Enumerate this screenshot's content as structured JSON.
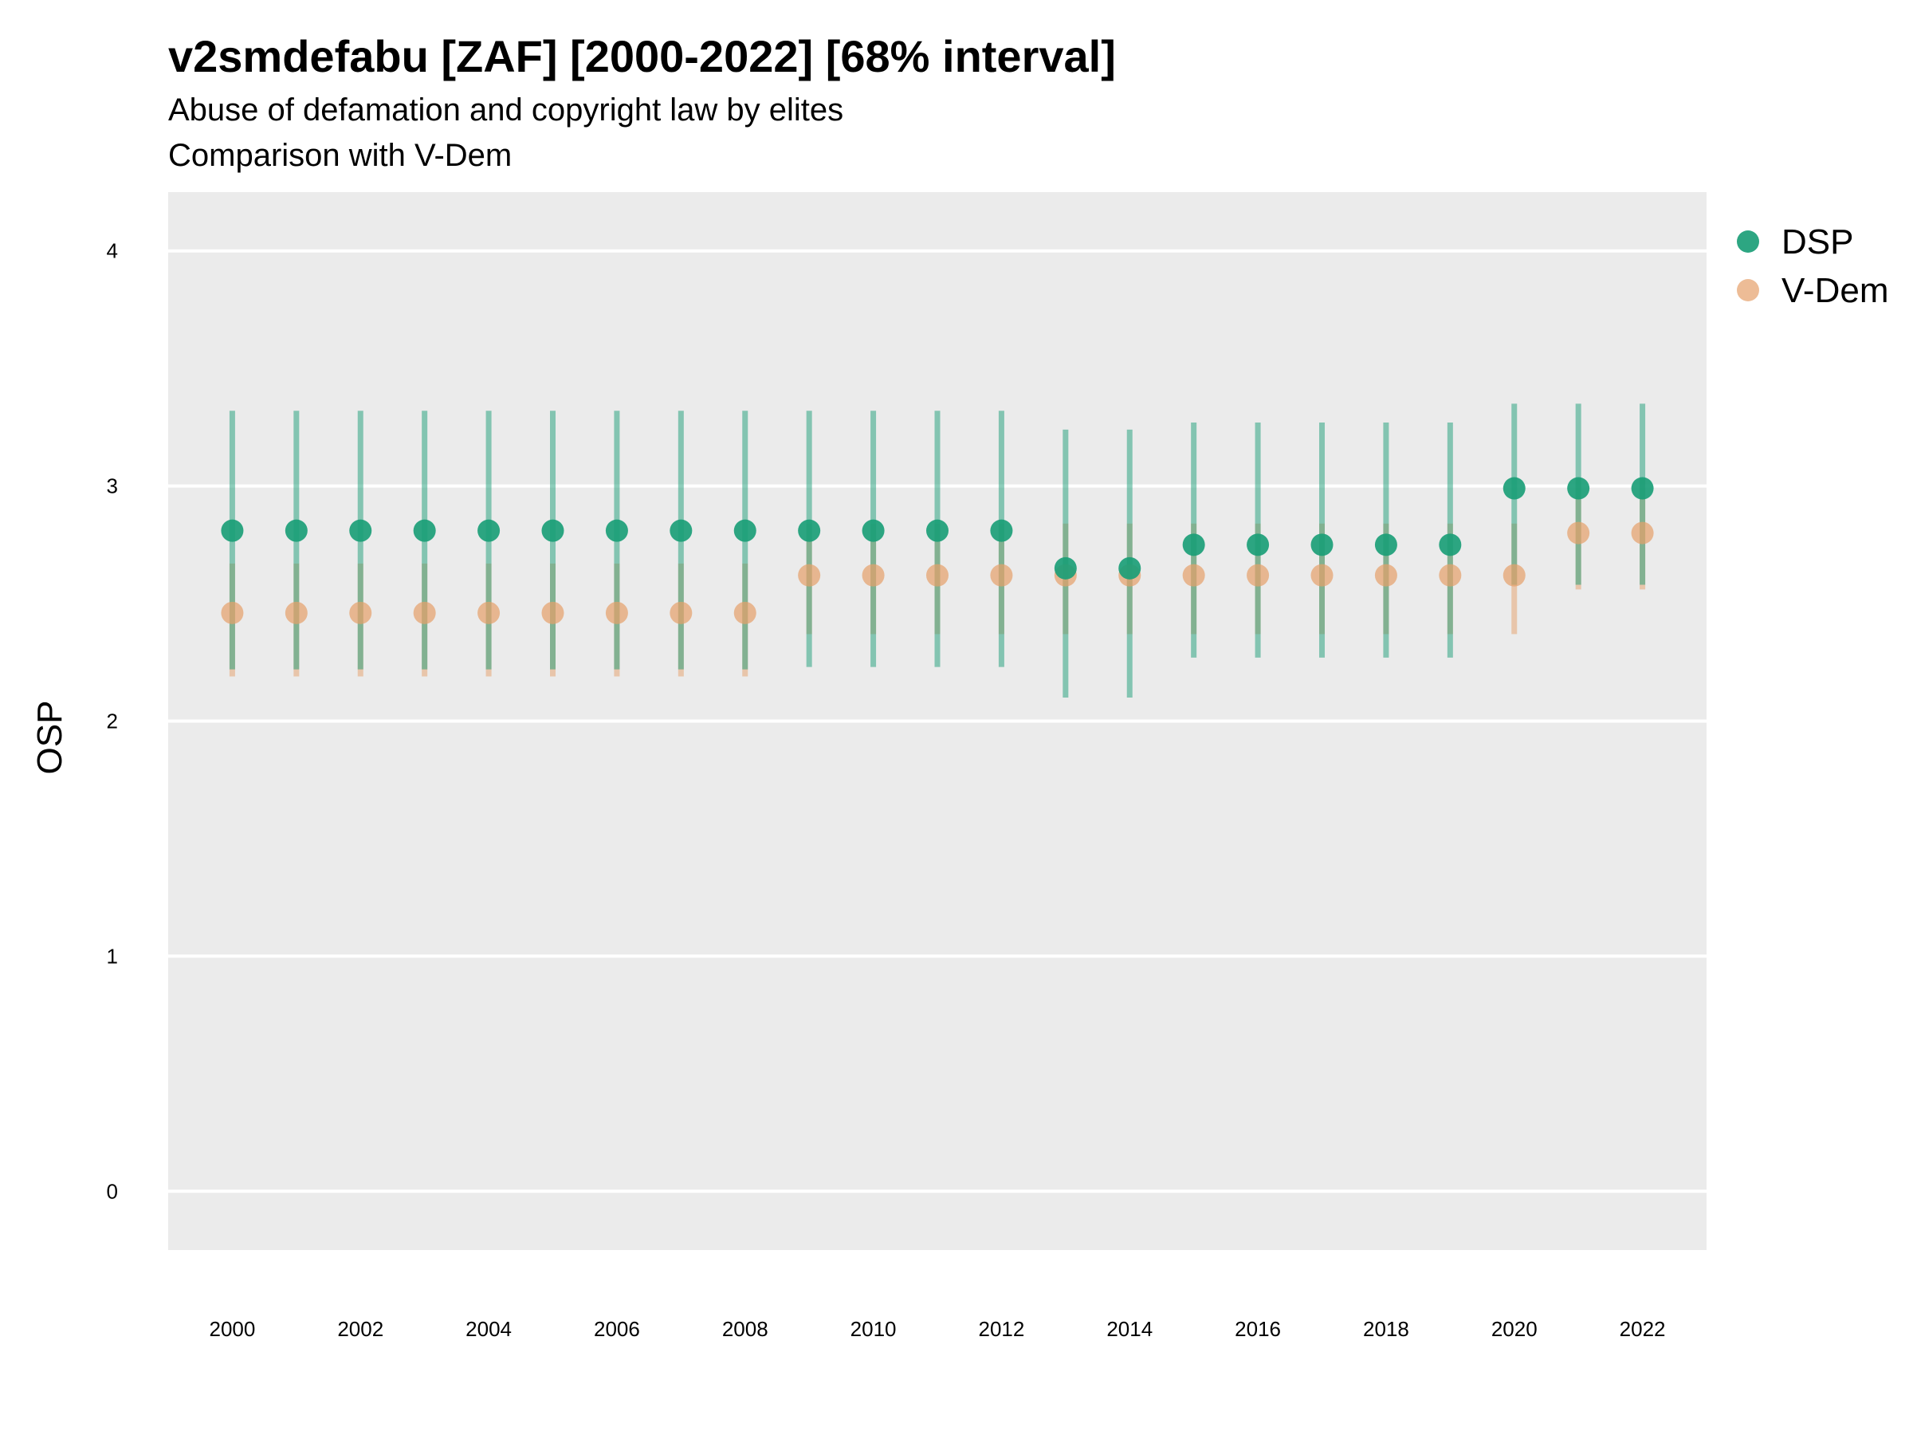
{
  "chart_data": {
    "type": "scatter",
    "title": "v2smdefabu [ZAF] [2000-2022] [68% interval]",
    "subtitle": [
      "Abuse of defamation and copyright law by elites",
      "Comparison with V-Dem"
    ],
    "xlabel": "",
    "ylabel": "OSP",
    "ylim": [
      -0.25,
      4.25
    ],
    "xlim": [
      1999,
      2023
    ],
    "x_ticks": [
      "2000",
      "2002",
      "2004",
      "2006",
      "2008",
      "2010",
      "2012",
      "2014",
      "2016",
      "2018",
      "2020",
      "2022"
    ],
    "y_ticks": [
      "0",
      "1",
      "2",
      "3",
      "4"
    ],
    "grid": true,
    "legend": "right",
    "x": [
      2000,
      2001,
      2002,
      2003,
      2004,
      2005,
      2006,
      2007,
      2008,
      2009,
      2010,
      2011,
      2012,
      2013,
      2014,
      2015,
      2016,
      2017,
      2018,
      2019,
      2020,
      2021,
      2022
    ],
    "series": [
      {
        "name": "DSP",
        "color": "#1b9e77",
        "values": [
          2.81,
          2.81,
          2.81,
          2.81,
          2.81,
          2.81,
          2.81,
          2.81,
          2.81,
          2.81,
          2.81,
          2.81,
          2.81,
          2.65,
          2.65,
          2.75,
          2.75,
          2.75,
          2.75,
          2.75,
          2.99,
          2.99,
          2.99
        ],
        "lower": [
          2.22,
          2.22,
          2.22,
          2.22,
          2.22,
          2.22,
          2.22,
          2.22,
          2.22,
          2.23,
          2.23,
          2.23,
          2.23,
          2.1,
          2.1,
          2.27,
          2.27,
          2.27,
          2.27,
          2.27,
          2.58,
          2.58,
          2.58
        ],
        "upper": [
          3.32,
          3.32,
          3.32,
          3.32,
          3.32,
          3.32,
          3.32,
          3.32,
          3.32,
          3.32,
          3.32,
          3.32,
          3.32,
          3.24,
          3.24,
          3.27,
          3.27,
          3.27,
          3.27,
          3.27,
          3.35,
          3.35,
          3.35
        ]
      },
      {
        "name": "V-Dem",
        "color": "#e6a06a",
        "values": [
          2.46,
          2.46,
          2.46,
          2.46,
          2.46,
          2.46,
          2.46,
          2.46,
          2.46,
          2.62,
          2.62,
          2.62,
          2.62,
          2.62,
          2.62,
          2.62,
          2.62,
          2.62,
          2.62,
          2.62,
          2.62,
          2.8,
          2.8
        ],
        "lower": [
          2.19,
          2.19,
          2.19,
          2.19,
          2.19,
          2.19,
          2.19,
          2.19,
          2.19,
          2.37,
          2.37,
          2.37,
          2.37,
          2.37,
          2.37,
          2.37,
          2.37,
          2.37,
          2.37,
          2.37,
          2.37,
          2.56,
          2.56
        ],
        "upper": [
          2.67,
          2.67,
          2.67,
          2.67,
          2.67,
          2.67,
          2.67,
          2.67,
          2.67,
          2.84,
          2.84,
          2.84,
          2.84,
          2.84,
          2.84,
          2.84,
          2.84,
          2.84,
          2.84,
          2.84,
          2.84,
          3.03,
          3.03
        ]
      }
    ]
  }
}
